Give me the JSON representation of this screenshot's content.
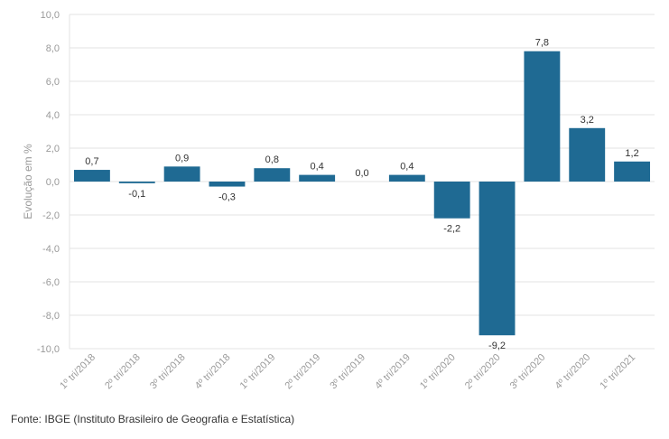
{
  "chart_data": {
    "type": "bar",
    "categories": [
      "1º tri/2018",
      "2º tri/2018",
      "3º tri/2018",
      "4º tri/2018",
      "1º tri/2019",
      "2º tri/2019",
      "3º tri/2019",
      "4º tri/2019",
      "1º tri/2020",
      "2º tri/2020",
      "3º tri/2020",
      "4º tri/2020",
      "1º tri/2021"
    ],
    "values": [
      0.7,
      -0.1,
      0.9,
      -0.3,
      0.8,
      0.4,
      0.0,
      0.4,
      -2.2,
      -9.2,
      7.8,
      3.2,
      1.2
    ],
    "data_labels": [
      "0,7",
      "-0,1",
      "0,9",
      "-0,3",
      "0,8",
      "0,4",
      "0,0",
      "0,4",
      "-2,2",
      "-9,2",
      "7,8",
      "3,2",
      "1,2"
    ],
    "ylim": [
      -10,
      10
    ],
    "yticks": [
      10,
      8,
      6,
      4,
      2,
      0,
      -2,
      -4,
      -6,
      -8,
      -10
    ],
    "ytick_labels": [
      "10,0",
      "8,0",
      "6,0",
      "4,0",
      "2,0",
      "0,0",
      "-2,0",
      "-4,0",
      "-6,0",
      "-8,0",
      "-10,0"
    ],
    "ylabel": "Evolução em %",
    "xlabel": "",
    "title": "",
    "grid": true,
    "bar_color": "#1f6a93"
  },
  "footer": {
    "source": "Fonte: IBGE (Instituto Brasileiro de Geografia e Estatística)"
  }
}
